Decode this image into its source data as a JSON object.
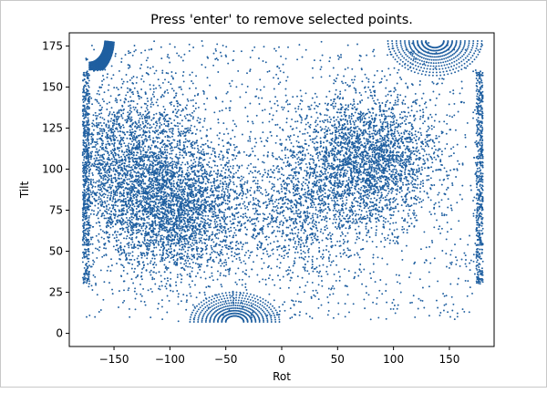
{
  "chart_data": {
    "type": "scatter",
    "title": "Press 'enter' to remove selected points.",
    "xlabel": "Rot",
    "ylabel": "Tilt",
    "xlim": [
      -190,
      190
    ],
    "ylim": [
      -8,
      183
    ],
    "xticks": [
      -150,
      -100,
      -50,
      0,
      50,
      100,
      150
    ],
    "xtick_labels": [
      "−150",
      "−100",
      "−50",
      "0",
      "50",
      "100",
      "150"
    ],
    "yticks": [
      0,
      25,
      50,
      75,
      100,
      125,
      150,
      175
    ],
    "ytick_labels": [
      "0",
      "25",
      "50",
      "75",
      "100",
      "125",
      "150",
      "175"
    ],
    "grid": false,
    "marker_color": "#1f5fa0",
    "point_count_estimate": 10000,
    "x_range": [
      -178,
      180
    ],
    "y_range": [
      2,
      178
    ],
    "density_clusters": [
      {
        "x_center": -95,
        "y_center": 75,
        "x_spread": 35,
        "y_spread": 20,
        "weight": 0.3
      },
      {
        "x_center": -150,
        "y_center": 100,
        "x_spread": 25,
        "y_spread": 20,
        "weight": 0.1
      },
      {
        "x_center": -120,
        "y_center": 120,
        "x_spread": 30,
        "y_spread": 20,
        "weight": 0.08
      },
      {
        "x_center": 80,
        "y_center": 105,
        "x_spread": 30,
        "y_spread": 20,
        "weight": 0.25
      },
      {
        "x_center": 20,
        "y_center": 80,
        "x_spread": 25,
        "y_spread": 25,
        "weight": 0.1
      }
    ],
    "arc_clusters": [
      {
        "x_center": -172,
        "y_center": 179,
        "radii": [
          14,
          22
        ],
        "y_min": 160,
        "side": "right-down"
      },
      {
        "x_center": 137,
        "y_center": 178,
        "radii": [
          8,
          42
        ],
        "y_min": 155,
        "side": "down"
      },
      {
        "x_center": -42,
        "y_center": 7,
        "radii": [
          8,
          40
        ],
        "y_max": 28,
        "side": "up"
      }
    ]
  }
}
